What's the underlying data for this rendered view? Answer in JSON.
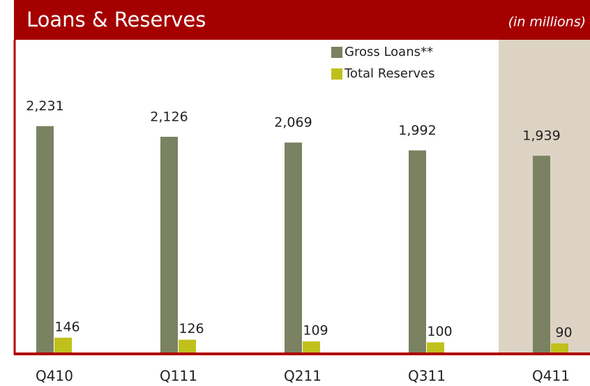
{
  "chart_data": {
    "type": "bar",
    "title": "Loans & Reserves",
    "subtitle": "(in millions)",
    "categories": [
      "Q410",
      "Q111",
      "Q211",
      "Q311",
      "Q411"
    ],
    "series": [
      {
        "name": "Gross Loans**",
        "color": "#7a8262",
        "values": [
          2231,
          2126,
          2069,
          1992,
          1939
        ],
        "value_labels": [
          "2,231",
          "2,126",
          "2,069",
          "1,992",
          "1,939"
        ]
      },
      {
        "name": "Total Reserves",
        "color": "#c0c01c",
        "values": [
          146,
          126,
          109,
          100,
          90
        ]
      }
    ],
    "ylim": [
      0,
      3075
    ],
    "grid": false,
    "legend": "top",
    "highlight_index": 4,
    "highlight_color": "#ddd3c4",
    "header_color": "#a50000"
  }
}
